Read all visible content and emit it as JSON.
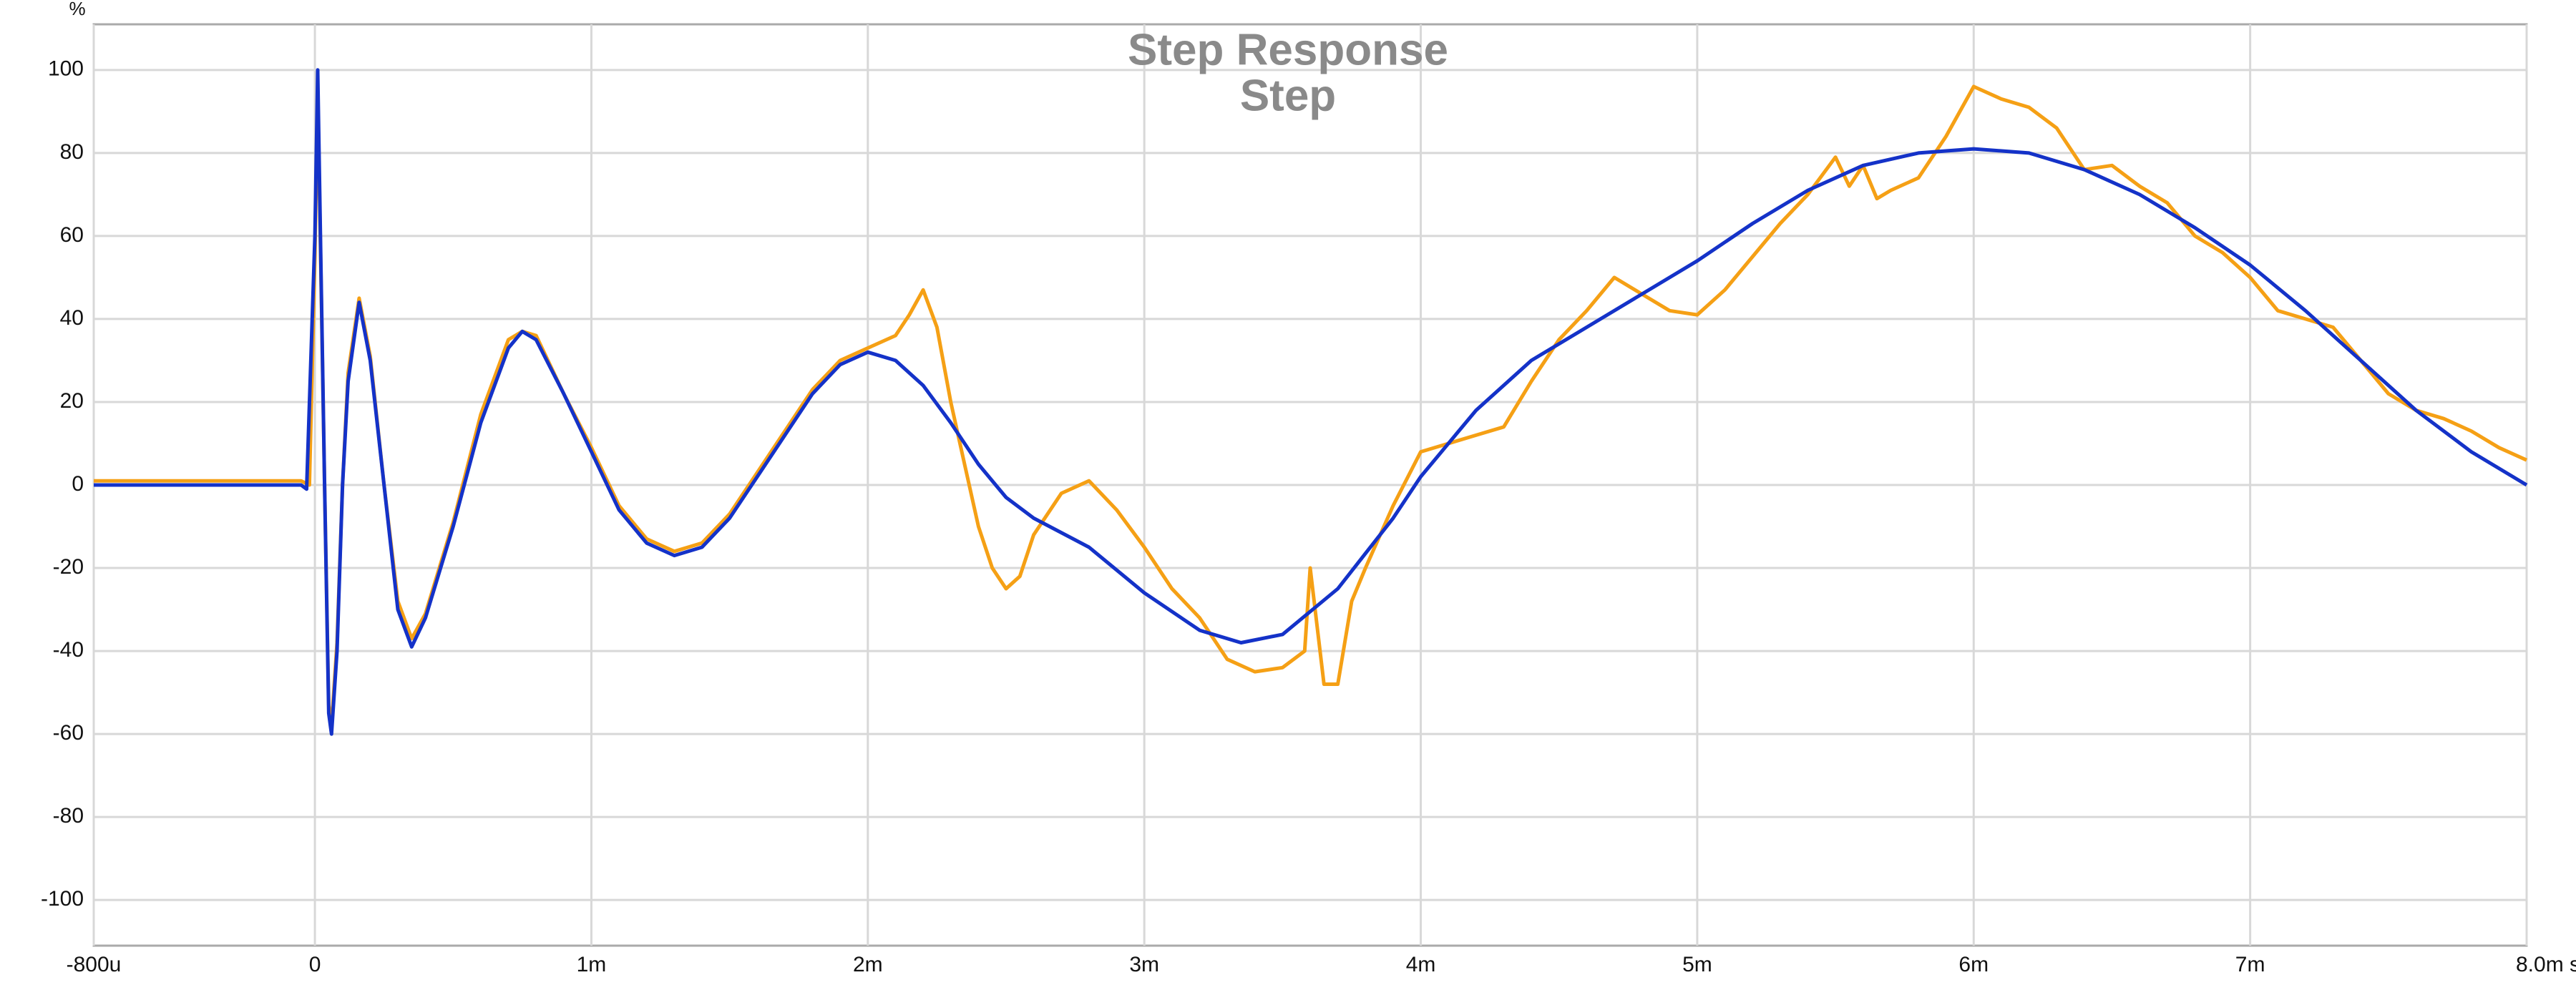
{
  "chart_data": {
    "type": "line",
    "title": "Step Response",
    "subtitle": "Step",
    "ylabel": "%",
    "xlim": [
      -0.8,
      8.0
    ],
    "ylim": [
      -111,
      111
    ],
    "grid": true,
    "xticks": [
      {
        "value": -0.8,
        "label": "-800u"
      },
      0,
      {
        "value": 1,
        "label": "1m"
      },
      {
        "value": 2,
        "label": "2m"
      },
      {
        "value": 3,
        "label": "3m"
      },
      {
        "value": 4,
        "label": "4m"
      },
      {
        "value": 5,
        "label": "5m"
      },
      {
        "value": 6,
        "label": "6m"
      },
      {
        "value": 7,
        "label": "7m"
      },
      {
        "value": 8,
        "label": "8.0m s"
      }
    ],
    "yticks": [
      -100,
      -80,
      -60,
      -40,
      -20,
      0,
      20,
      40,
      60,
      80,
      100
    ],
    "series": [
      {
        "color": "#f5a015",
        "x": [
          -0.8,
          -0.05,
          -0.02,
          0,
          0.01,
          0.02,
          0.035,
          0.05,
          0.06,
          0.08,
          0.1,
          0.12,
          0.16,
          0.2,
          0.25,
          0.3,
          0.35,
          0.4,
          0.5,
          0.6,
          0.7,
          0.75,
          0.8,
          0.9,
          1.0,
          1.1,
          1.2,
          1.3,
          1.4,
          1.5,
          1.6,
          1.7,
          1.8,
          1.9,
          2.0,
          2.1,
          2.15,
          2.2,
          2.25,
          2.3,
          2.35,
          2.4,
          2.45,
          2.5,
          2.55,
          2.6,
          2.7,
          2.8,
          2.9,
          3.0,
          3.1,
          3.2,
          3.3,
          3.4,
          3.5,
          3.58,
          3.6,
          3.65,
          3.7,
          3.75,
          3.8,
          3.9,
          4.0,
          4.1,
          4.2,
          4.3,
          4.4,
          4.5,
          4.6,
          4.7,
          4.8,
          4.9,
          5.0,
          5.1,
          5.2,
          5.3,
          5.4,
          5.5,
          5.55,
          5.6,
          5.65,
          5.7,
          5.8,
          5.9,
          6.0,
          6.1,
          6.2,
          6.3,
          6.4,
          6.5,
          6.6,
          6.7,
          6.8,
          6.9,
          7.0,
          7.1,
          7.2,
          7.3,
          7.4,
          7.5,
          7.6,
          7.7,
          7.8,
          7.9,
          8.0
        ],
        "values": [
          1,
          1,
          0,
          55,
          95,
          58,
          0,
          -53,
          -58,
          -38,
          0,
          27,
          45,
          31,
          0,
          -28,
          -37,
          -31,
          -9,
          17,
          35,
          37,
          36,
          22,
          9,
          -5,
          -13,
          -16,
          -14,
          -7,
          3,
          13,
          23,
          30,
          33,
          36,
          41,
          47,
          38,
          20,
          5,
          -10,
          -20,
          -25,
          -22,
          -12,
          -2,
          1,
          -6,
          -15,
          -25,
          -32,
          -42,
          -45,
          -44,
          -40,
          -20,
          -48,
          -48,
          -28,
          -20,
          -5,
          8,
          10,
          12,
          14,
          25,
          35,
          42,
          50,
          46,
          42,
          41,
          47,
          55,
          63,
          70,
          79,
          72,
          77,
          69,
          71,
          74,
          84,
          96,
          93,
          91,
          86,
          76,
          77,
          72,
          68,
          60,
          56,
          50,
          42,
          40,
          38,
          30,
          22,
          18,
          16,
          13,
          9,
          6
        ]
      },
      {
        "color": "#1432c8",
        "x": [
          -0.8,
          -0.1,
          -0.05,
          -0.03,
          0,
          0.01,
          0.02,
          0.035,
          0.05,
          0.06,
          0.08,
          0.1,
          0.12,
          0.16,
          0.2,
          0.25,
          0.3,
          0.35,
          0.4,
          0.5,
          0.6,
          0.7,
          0.75,
          0.8,
          0.9,
          1.0,
          1.1,
          1.2,
          1.3,
          1.4,
          1.5,
          1.6,
          1.7,
          1.8,
          1.9,
          2.0,
          2.1,
          2.2,
          2.3,
          2.4,
          2.5,
          2.6,
          2.8,
          3.0,
          3.2,
          3.35,
          3.5,
          3.7,
          3.9,
          4.0,
          4.2,
          4.4,
          4.6,
          4.8,
          5.0,
          5.2,
          5.4,
          5.6,
          5.8,
          6.0,
          6.2,
          6.4,
          6.6,
          6.8,
          7.0,
          7.2,
          7.4,
          7.6,
          7.8,
          8.0
        ],
        "values": [
          0,
          0,
          0,
          -1,
          60,
          100,
          60,
          0,
          -55,
          -60,
          -40,
          0,
          25,
          44,
          30,
          0,
          -30,
          -39,
          -32,
          -10,
          15,
          33,
          37,
          35,
          22,
          8,
          -6,
          -14,
          -17,
          -15,
          -8,
          2,
          12,
          22,
          29,
          32,
          30,
          24,
          15,
          5,
          -3,
          -8,
          -15,
          -26,
          -35,
          -38,
          -36,
          -25,
          -8,
          2,
          18,
          30,
          38,
          46,
          54,
          63,
          71,
          77,
          80,
          81,
          80,
          76,
          70,
          62,
          53,
          42,
          30,
          18,
          8,
          0
        ]
      }
    ]
  }
}
